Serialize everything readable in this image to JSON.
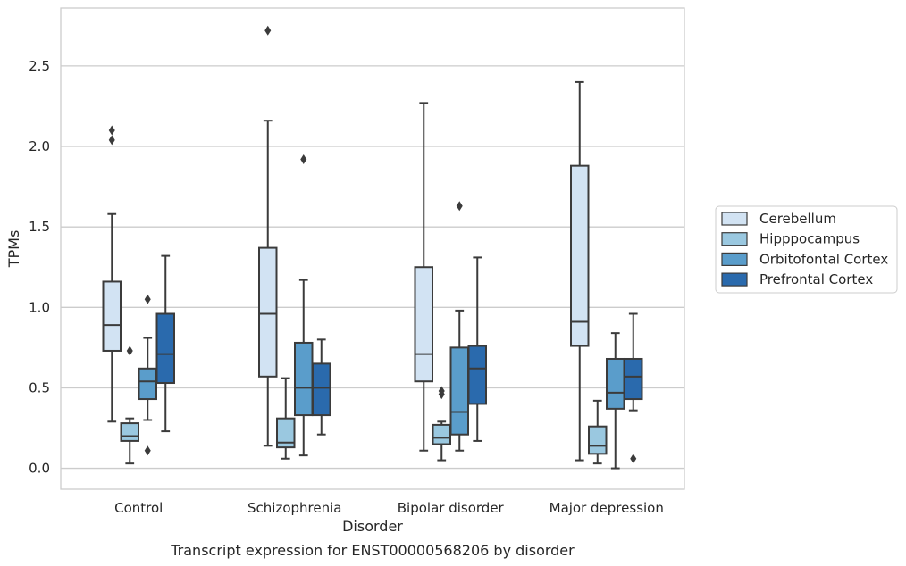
{
  "chart_data": {
    "type": "box",
    "title": "",
    "caption": "Transcript expression for ENST00000568206 by disorder",
    "xlabel": "Disorder",
    "ylabel": "TPMs",
    "ylim": [
      -0.13,
      2.86
    ],
    "yticks": [
      "0.0",
      "0.5",
      "1.0",
      "1.5",
      "2.0",
      "2.5"
    ],
    "categories": [
      "Control",
      "Schizophrenia",
      "Bipolar disorder",
      "Major depression"
    ],
    "grid": "horizontal",
    "legend_position": "right",
    "series": [
      {
        "name": "Cerebellum",
        "color": "#d2e3f3",
        "boxes": [
          {
            "min": 0.29,
            "q1": 0.73,
            "median": 0.89,
            "q3": 1.16,
            "max": 1.58,
            "outliers": [
              2.04,
              2.1
            ]
          },
          {
            "min": 0.14,
            "q1": 0.57,
            "median": 0.96,
            "q3": 1.37,
            "max": 2.16,
            "outliers": [
              2.72
            ]
          },
          {
            "min": 0.11,
            "q1": 0.54,
            "median": 0.71,
            "q3": 1.25,
            "max": 2.27,
            "outliers": []
          },
          {
            "min": 0.05,
            "q1": 0.76,
            "median": 0.91,
            "q3": 1.88,
            "max": 2.4,
            "outliers": []
          }
        ]
      },
      {
        "name": "Hipppocampus",
        "color": "#9ac8e0",
        "boxes": [
          {
            "min": 0.03,
            "q1": 0.17,
            "median": 0.2,
            "q3": 0.28,
            "max": 0.31,
            "outliers": [
              0.73
            ]
          },
          {
            "min": 0.06,
            "q1": 0.13,
            "median": 0.16,
            "q3": 0.31,
            "max": 0.56,
            "outliers": []
          },
          {
            "min": 0.05,
            "q1": 0.15,
            "median": 0.19,
            "q3": 0.27,
            "max": 0.29,
            "outliers": [
              0.46,
              0.48
            ]
          },
          {
            "min": 0.03,
            "q1": 0.09,
            "median": 0.14,
            "q3": 0.26,
            "max": 0.42,
            "outliers": []
          }
        ]
      },
      {
        "name": "Orbitofontal Cortex",
        "color": "#5a9dcb",
        "boxes": [
          {
            "min": 0.3,
            "q1": 0.43,
            "median": 0.54,
            "q3": 0.62,
            "max": 0.81,
            "outliers": [
              0.11,
              1.05
            ]
          },
          {
            "min": 0.08,
            "q1": 0.33,
            "median": 0.5,
            "q3": 0.78,
            "max": 1.17,
            "outliers": [
              1.92
            ]
          },
          {
            "min": 0.11,
            "q1": 0.21,
            "median": 0.35,
            "q3": 0.75,
            "max": 0.98,
            "outliers": [
              1.63
            ]
          },
          {
            "min": 0.0,
            "q1": 0.37,
            "median": 0.47,
            "q3": 0.68,
            "max": 0.84,
            "outliers": []
          }
        ]
      },
      {
        "name": "Prefrontal Cortex",
        "color": "#2a6aad",
        "boxes": [
          {
            "min": 0.23,
            "q1": 0.53,
            "median": 0.71,
            "q3": 0.96,
            "max": 1.32,
            "outliers": []
          },
          {
            "min": 0.21,
            "q1": 0.33,
            "median": 0.5,
            "q3": 0.65,
            "max": 0.8,
            "outliers": []
          },
          {
            "min": 0.17,
            "q1": 0.4,
            "median": 0.62,
            "q3": 0.76,
            "max": 1.31,
            "outliers": []
          },
          {
            "min": 0.36,
            "q1": 0.43,
            "median": 0.57,
            "q3": 0.68,
            "max": 0.96,
            "outliers": [
              0.06
            ]
          }
        ]
      }
    ]
  }
}
